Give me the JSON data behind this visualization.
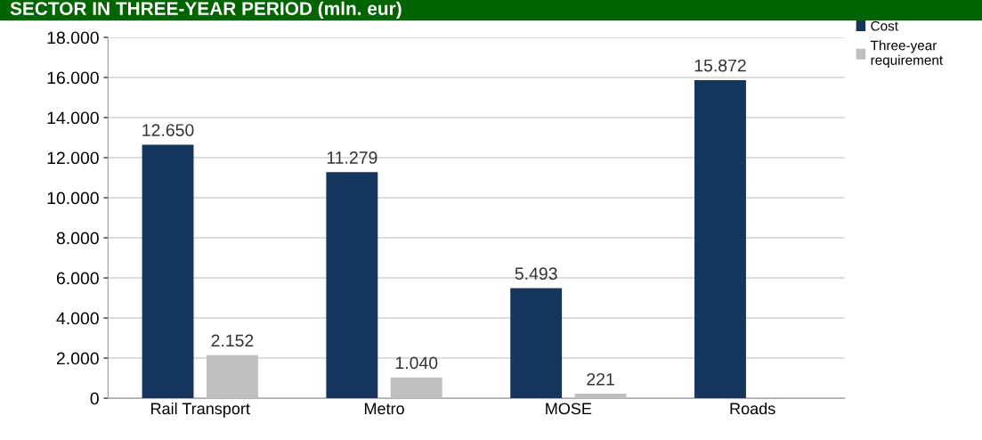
{
  "chart_data": {
    "type": "bar",
    "title": "SECTOR IN THREE-YEAR PERIOD (mln. eur)",
    "categories": [
      "Rail Transport",
      "Metro",
      "MOSE",
      "Roads"
    ],
    "series": [
      {
        "name": "Cost",
        "color": "#17365d",
        "values": [
          12650,
          11279,
          5493,
          15872
        ],
        "value_labels": [
          "12.650",
          "11.279",
          "5.493",
          "15.872"
        ]
      },
      {
        "name": "Three-year requirement",
        "color": "#bfbfbf",
        "values": [
          2152,
          1040,
          221,
          null
        ],
        "value_labels": [
          "2.152",
          "1.040",
          "221",
          null
        ]
      }
    ],
    "ylim": [
      0,
      18000
    ],
    "yticks": [
      {
        "value": 0,
        "label": "0"
      },
      {
        "value": 2000,
        "label": "2.000"
      },
      {
        "value": 4000,
        "label": "4.000"
      },
      {
        "value": 6000,
        "label": "6.000"
      },
      {
        "value": 8000,
        "label": "8.000"
      },
      {
        "value": 10000,
        "label": "10.000"
      },
      {
        "value": 12000,
        "label": "12.000"
      },
      {
        "value": 14000,
        "label": "14.000"
      },
      {
        "value": 16000,
        "label": "16.000"
      },
      {
        "value": 18000,
        "label": "18.000"
      }
    ],
    "grid": "y",
    "legend": "top right"
  }
}
